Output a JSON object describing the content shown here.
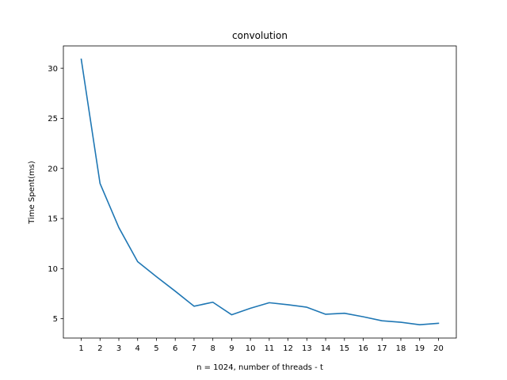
{
  "chart_data": {
    "type": "line",
    "title": "convolution",
    "xlabel": "n = 1024, number of threads - t",
    "ylabel": "Time Spent(ms)",
    "x": [
      1,
      2,
      3,
      4,
      5,
      6,
      7,
      8,
      9,
      10,
      11,
      12,
      13,
      14,
      15,
      16,
      17,
      18,
      19,
      20
    ],
    "series": [
      {
        "values": [
          30.9,
          18.5,
          14.1,
          10.7,
          9.2,
          7.75,
          6.25,
          6.65,
          5.4,
          6.05,
          6.6,
          6.4,
          6.15,
          5.45,
          5.55,
          5.2,
          4.8,
          4.65,
          4.4,
          4.55
        ],
        "color": "#1f77b4"
      }
    ],
    "xticks": [
      "1",
      "2",
      "3",
      "4",
      "5",
      "6",
      "7",
      "8",
      "9",
      "10",
      "11",
      "12",
      "13",
      "14",
      "15",
      "16",
      "17",
      "18",
      "19",
      "20"
    ],
    "yticks": [
      5,
      10,
      15,
      20,
      25,
      30
    ],
    "xlim": [
      0.05,
      20.95
    ],
    "ylim": [
      3.075,
      32.225
    ],
    "grid": false,
    "legend": "none"
  }
}
